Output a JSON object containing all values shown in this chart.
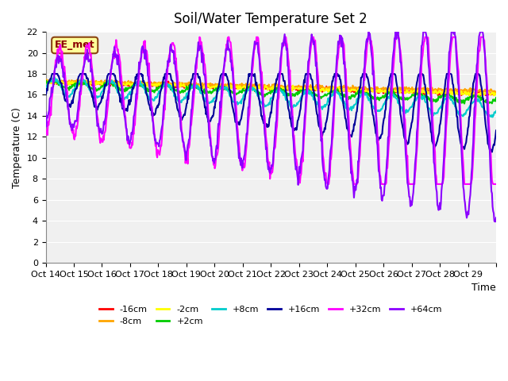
{
  "title": "Soil/Water Temperature Set 2",
  "xlabel": "Time",
  "ylabel": "Temperature (C)",
  "ylim": [
    0,
    22
  ],
  "xlim": [
    0,
    16
  ],
  "x_tick_labels": [
    "Oct 14",
    "Oct 15",
    "Oct 16",
    "Oct 17",
    "Oct 18",
    "Oct 19",
    "Oct 20",
    "Oct 21",
    "Oct 22",
    "Oct 23",
    "Oct 24",
    "Oct 25",
    "Oct 26",
    "Oct 27",
    "Oct 28",
    "Oct 29",
    ""
  ],
  "annotation_text": "EE_met",
  "annotation_color": "#8B0000",
  "annotation_bg": "#FFFF99",
  "annotation_border": "#8B4513",
  "series": {
    "-16cm": {
      "color": "#FF0000",
      "lw": 1.5
    },
    "-8cm": {
      "color": "#FFA500",
      "lw": 1.5
    },
    "-2cm": {
      "color": "#FFFF00",
      "lw": 1.5
    },
    "+2cm": {
      "color": "#00CC00",
      "lw": 1.5
    },
    "+8cm": {
      "color": "#00CCCC",
      "lw": 1.5
    },
    "+16cm": {
      "color": "#000099",
      "lw": 1.5
    },
    "+32cm": {
      "color": "#FF00FF",
      "lw": 1.5
    },
    "+64cm": {
      "color": "#8B00FF",
      "lw": 1.5
    }
  },
  "plot_bg": "#F0F0F0"
}
